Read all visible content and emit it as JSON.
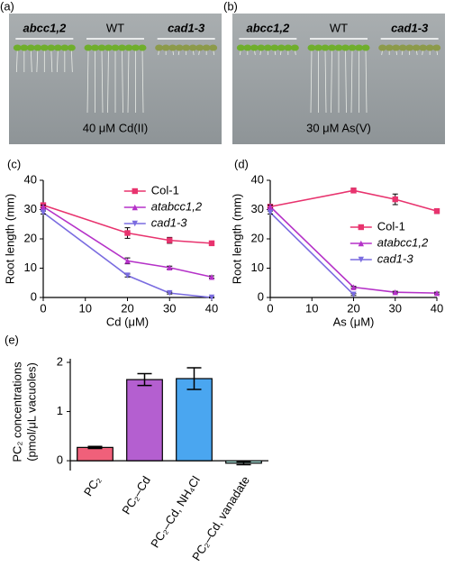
{
  "photos": [
    {
      "label": "(a)",
      "groups": [
        "abcc1,2",
        "WT",
        "cad1-3"
      ],
      "caption": "40 μM Cd(II)"
    },
    {
      "label": "(b)",
      "groups": [
        "abcc1,2",
        "WT",
        "cad1-3"
      ],
      "caption": "30 μM As(V)"
    }
  ],
  "chart_data": [
    {
      "type": "line",
      "panel": "(c)",
      "xlabel": "Cd (μM)",
      "ylabel": "Root length (mm)",
      "x": [
        0,
        20,
        30,
        40
      ],
      "xlim": [
        0,
        40
      ],
      "xticks": [
        0,
        10,
        20,
        30,
        40
      ],
      "ylim": [
        0,
        40
      ],
      "yticks": [
        0,
        10,
        20,
        30,
        40
      ],
      "legend": "upper right",
      "series": [
        {
          "name": "Col-1",
          "color": "#e8336e",
          "marker": "square",
          "style": "normal",
          "values": [
            31.5,
            22,
            19.5,
            18.5
          ],
          "errors": [
            0.5,
            1.8,
            1,
            0.5
          ]
        },
        {
          "name": "atabcc1,2",
          "color": "#b532c8",
          "marker": "triangle-up",
          "style": "italic",
          "values": [
            31,
            12.5,
            10.2,
            7
          ],
          "errors": [
            0.5,
            1,
            0.5,
            0.4
          ]
        },
        {
          "name": "cad1-3",
          "color": "#7a6ce0",
          "marker": "triangle-down",
          "style": "italic",
          "values": [
            29,
            7.5,
            1.5,
            0
          ],
          "errors": [
            0.5,
            0.5,
            0.3,
            0.2
          ]
        }
      ]
    },
    {
      "type": "line",
      "panel": "(d)",
      "xlabel": "As (μM)",
      "ylabel": "Root length (mm)",
      "x": [
        0,
        20,
        30,
        40
      ],
      "xlim": [
        0,
        40
      ],
      "xticks": [
        0,
        10,
        20,
        30,
        40
      ],
      "ylim": [
        0,
        40
      ],
      "yticks": [
        0,
        10,
        20,
        30,
        40
      ],
      "legend": "center right",
      "series": [
        {
          "name": "Col-1",
          "color": "#e8336e",
          "marker": "square",
          "style": "normal",
          "values": [
            31,
            36.5,
            33.5,
            29.5
          ],
          "errors": [
            0.5,
            0.8,
            1.8,
            0.8
          ]
        },
        {
          "name": "atabcc1,2",
          "color": "#b532c8",
          "marker": "triangle-up",
          "style": "italic",
          "values": [
            31,
            3.5,
            1.8,
            1.5
          ],
          "errors": [
            0.5,
            0.3,
            0.3,
            0.3
          ]
        },
        {
          "name": "cad1-3",
          "color": "#7a6ce0",
          "marker": "triangle-down",
          "style": "italic",
          "values": [
            29,
            1,
            null,
            null
          ],
          "errors": [
            0.5,
            0.3,
            null,
            null
          ]
        }
      ]
    },
    {
      "type": "bar",
      "panel": "(e)",
      "ylabel": [
        "PC₂ concentrations",
        "(pmol/μL vacuoles)"
      ],
      "categories": [
        "PC₂",
        "PC₂–Cd",
        "PC₂–Cd, NH₄Cl",
        "PC₂–Cd, vanadate"
      ],
      "values": [
        0.27,
        1.65,
        1.67,
        -0.05
      ],
      "errors": [
        0.02,
        0.12,
        0.22,
        0.03
      ],
      "colors": [
        "#f0607a",
        "#b45fd0",
        "#4aa6f0",
        "#a8e0d8"
      ],
      "ylim": [
        -0.2,
        2
      ],
      "yticks": [
        0,
        1,
        2
      ]
    }
  ]
}
